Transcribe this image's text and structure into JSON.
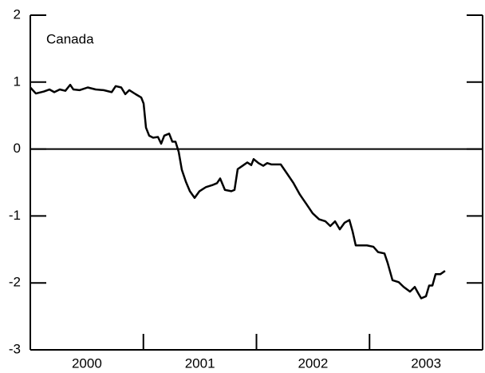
{
  "chart_data": {
    "type": "line",
    "annotation": "Canada",
    "categories": [
      "2000",
      "2001",
      "2002",
      "2003"
    ],
    "xlim": [
      2000,
      2004
    ],
    "xticks": [
      2001,
      2002,
      2003
    ],
    "ylim": [
      -3,
      2
    ],
    "yticks": [
      2,
      1,
      0,
      -1,
      -2,
      -3
    ],
    "zero_line": true,
    "color": "#000000",
    "x": [
      2000.0,
      2000.049,
      2000.12,
      2000.169,
      2000.212,
      2000.261,
      2000.31,
      2000.353,
      2000.381,
      2000.437,
      2000.508,
      2000.578,
      2000.649,
      2000.72,
      2000.755,
      2000.804,
      2000.84,
      2000.875,
      2000.931,
      2000.981,
      2001.002,
      2001.023,
      2001.051,
      2001.086,
      2001.129,
      2001.157,
      2001.185,
      2001.228,
      2001.256,
      2001.284,
      2001.312,
      2001.34,
      2001.376,
      2001.411,
      2001.453,
      2001.496,
      2001.552,
      2001.608,
      2001.651,
      2001.679,
      2001.721,
      2001.778,
      2001.806,
      2001.834,
      2001.877,
      2001.919,
      2001.954,
      2001.975,
      2002.018,
      2002.06,
      2002.095,
      2002.131,
      2002.215,
      2002.272,
      2002.328,
      2002.384,
      2002.441,
      2002.497,
      2002.554,
      2002.61,
      2002.653,
      2002.695,
      2002.737,
      2002.78,
      2002.822,
      2002.85,
      2002.878,
      2002.921,
      2002.977,
      2003.034,
      2003.076,
      2003.132,
      2003.16,
      2003.203,
      2003.259,
      2003.302,
      2003.358,
      2003.4,
      2003.429,
      2003.457,
      2003.499,
      2003.527,
      2003.556,
      2003.584,
      2003.626,
      2003.668
    ],
    "values": [
      0.92,
      0.83,
      0.86,
      0.89,
      0.85,
      0.89,
      0.87,
      0.96,
      0.89,
      0.88,
      0.92,
      0.89,
      0.88,
      0.85,
      0.94,
      0.92,
      0.82,
      0.88,
      0.82,
      0.77,
      0.68,
      0.32,
      0.2,
      0.17,
      0.18,
      0.08,
      0.2,
      0.23,
      0.11,
      0.11,
      -0.04,
      -0.31,
      -0.49,
      -0.63,
      -0.73,
      -0.63,
      -0.57,
      -0.54,
      -0.51,
      -0.44,
      -0.61,
      -0.63,
      -0.61,
      -0.3,
      -0.25,
      -0.2,
      -0.24,
      -0.15,
      -0.21,
      -0.25,
      -0.21,
      -0.23,
      -0.23,
      -0.37,
      -0.51,
      -0.68,
      -0.82,
      -0.96,
      -1.05,
      -1.08,
      -1.15,
      -1.08,
      -1.2,
      -1.1,
      -1.06,
      -1.23,
      -1.44,
      -1.44,
      -1.44,
      -1.46,
      -1.54,
      -1.56,
      -1.7,
      -1.96,
      -1.99,
      -2.06,
      -2.13,
      -2.06,
      -2.15,
      -2.23,
      -2.2,
      -2.04,
      -2.04,
      -1.87,
      -1.87,
      -1.82
    ]
  }
}
